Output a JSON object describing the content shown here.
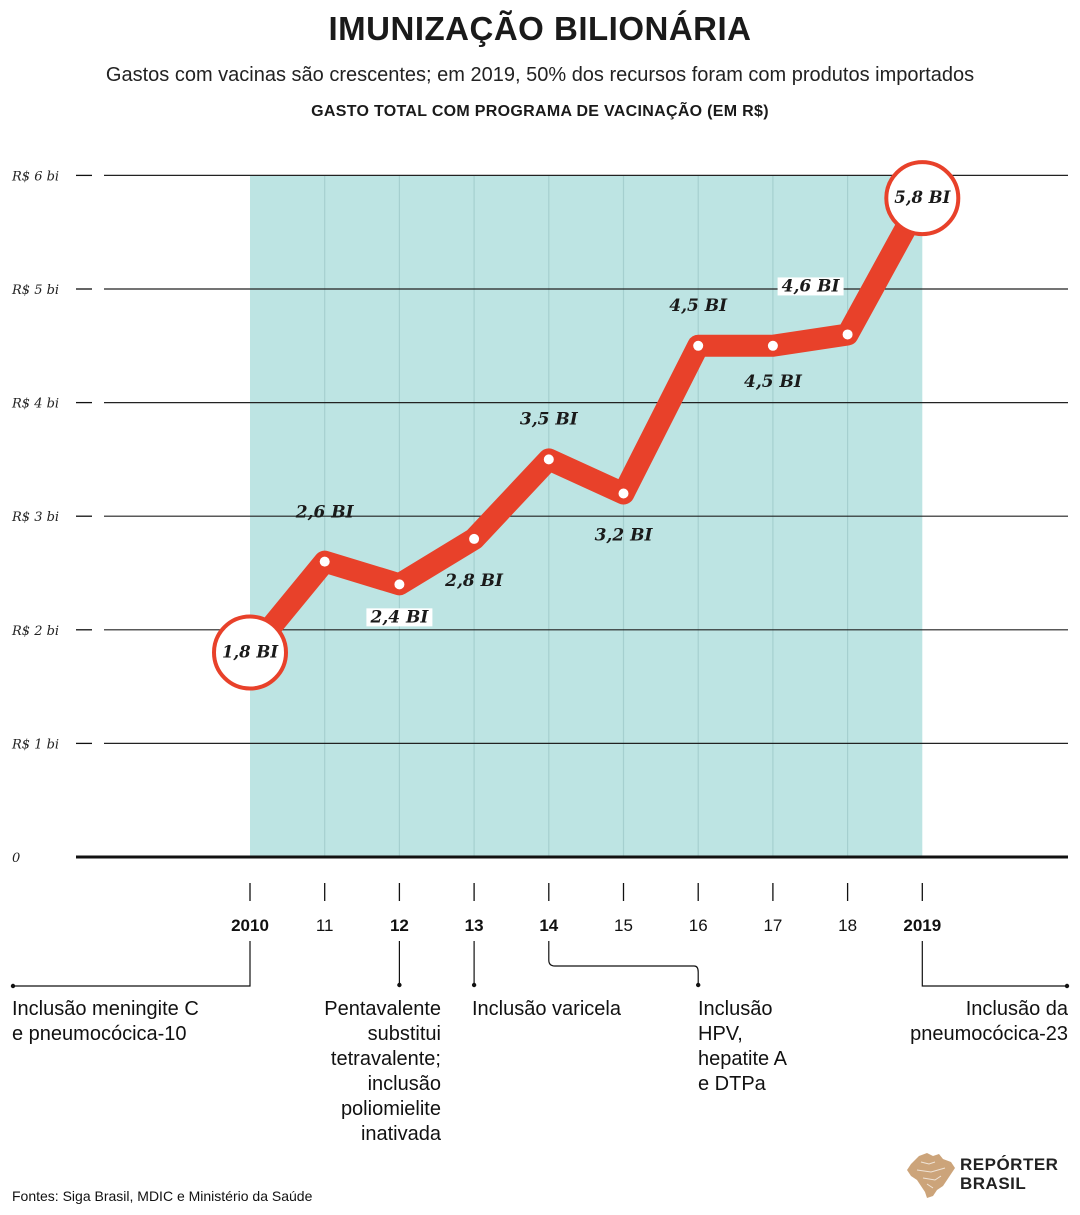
{
  "title": "IMUNIZAÇÃO BILIONÁRIA",
  "subtitle": "Gastos com vacinas são crescentes; em 2019, 50% dos recursos foram com produtos importados",
  "chart_heading": "GASTO TOTAL COM PROGRAMA DE VACINAÇÃO (EM R$)",
  "colors": {
    "line": "#e8412a",
    "band": "#bde4e3",
    "grid": "#222222",
    "point": "#ffffff"
  },
  "chart_data": {
    "type": "line",
    "title": "GASTO TOTAL COM PROGRAMA DE VACINAÇÃO (EM R$)",
    "x": [
      "2010",
      "11",
      "12",
      "13",
      "14",
      "15",
      "16",
      "17",
      "18",
      "2019"
    ],
    "y_values_bi": [
      1.8,
      2.6,
      2.4,
      2.8,
      3.5,
      3.2,
      4.5,
      4.5,
      4.6,
      5.8
    ],
    "data_labels": [
      "1,8 BI",
      "2,6 BI",
      "2,4 BI",
      "2,8 BI",
      "3,5 BI",
      "3,2 BI",
      "4,5 BI",
      "4,5 BI",
      "4,6 BI",
      "5,8 BI"
    ],
    "y_ticks": [
      0,
      1,
      2,
      3,
      4,
      5,
      6
    ],
    "y_tick_labels": [
      "0",
      "R$ 1 bi",
      "R$ 2 bi",
      "R$ 3 bi",
      "R$ 4 bi",
      "R$ 5 bi",
      "R$ 6 bi"
    ],
    "ylim": [
      0,
      6
    ],
    "grid": true,
    "highlighted_points": [
      "2010",
      "2019"
    ]
  },
  "events": [
    {
      "year": "2010",
      "text": "Inclusão meningite C\ne pneumocócica-10"
    },
    {
      "year": "12",
      "text": "Pentavalente\nsubstitui\ntetravalente;\ninclusão\npoliomielite\ninativada"
    },
    {
      "year": "13",
      "text": "Inclusão varicela"
    },
    {
      "year": "14",
      "text": "Inclusão\nHPV,\nhepatite A\ne DTPa"
    },
    {
      "year": "2019",
      "text": "Inclusão da\npneumocócica-23"
    }
  ],
  "source": "Fontes: Siga Brasil, MDIC e Ministério da Saúde",
  "logo": {
    "line1": "REPÓRTER",
    "line2": "BRASIL",
    "icon": "brazil-map-icon"
  }
}
